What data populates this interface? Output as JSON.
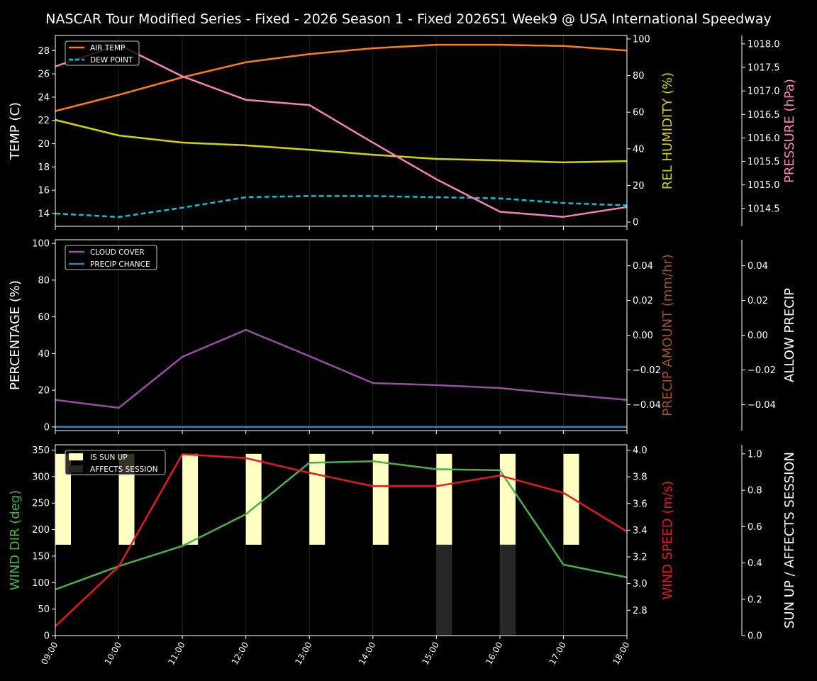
{
  "title": "NASCAR Tour Modified Series - Fixed - 2026 Season 1 - Fixed 2026S1 Week9 @ USA International Speedway",
  "chart_data": [
    {
      "type": "line",
      "x": [
        "09:00",
        "10:00",
        "11:00",
        "12:00",
        "13:00",
        "14:00",
        "15:00",
        "16:00",
        "17:00",
        "18:00"
      ],
      "grid": "vertical",
      "legend_position": "top-left",
      "axes": {
        "left": {
          "label": "TEMP (C)",
          "range": [
            12.9,
            29.3
          ],
          "ticks": [
            "14",
            "16",
            "18",
            "20",
            "22",
            "24",
            "26",
            "28"
          ],
          "color": "#ffffff"
        },
        "right": {
          "label": "REL HUMIDITY (%)",
          "range": [
            -2.3,
            101.9
          ],
          "ticks": [
            "0",
            "20",
            "40",
            "60",
            "80",
            "100"
          ],
          "color": "#d4d400"
        },
        "outer": {
          "label": "PRESSURE (hPa)",
          "range": [
            1014.12,
            1018.18
          ],
          "ticks": [
            "1014.5",
            "1015.0",
            "1015.5",
            "1016.0",
            "1016.5",
            "1017.0",
            "1017.5",
            "1018.0"
          ],
          "color": "#f781bf"
        }
      },
      "series": [
        {
          "name": "AIR TEMP",
          "axis": "left",
          "color": "#ff7f0e",
          "style": "solid",
          "values": [
            22.8,
            24.2,
            25.7,
            27.0,
            27.7,
            28.2,
            28.5,
            28.5,
            28.4,
            28.0
          ]
        },
        {
          "name": "DEW POINT",
          "axis": "left",
          "color": "#17becf",
          "style": "dashed",
          "values": [
            14.0,
            13.7,
            14.5,
            15.4,
            15.5,
            15.5,
            15.4,
            15.3,
            14.9,
            14.7
          ]
        },
        {
          "axis": "right",
          "color": "#d4d400",
          "style": "solid",
          "values": [
            55.8,
            47.3,
            43.4,
            41.9,
            39.5,
            36.8,
            34.5,
            33.7,
            32.6,
            33.3
          ]
        },
        {
          "axis": "outer",
          "color": "#f781bf",
          "style": "solid",
          "values": [
            1017.52,
            1017.98,
            1017.31,
            1016.81,
            1016.7,
            1015.9,
            1015.12,
            1014.43,
            1014.32,
            1014.53
          ]
        }
      ]
    },
    {
      "type": "line",
      "x": [
        "09:00",
        "10:00",
        "11:00",
        "12:00",
        "13:00",
        "14:00",
        "15:00",
        "16:00",
        "17:00",
        "18:00"
      ],
      "grid": "vertical",
      "legend_position": "top-left",
      "axes": {
        "left": {
          "label": "PERCENTAGE (%)",
          "range": [
            -2,
            102
          ],
          "ticks": [
            "0",
            "20",
            "40",
            "60",
            "80",
            "100"
          ],
          "color": "#ffffff"
        },
        "right": {
          "label": "PRECIP AMOUNT (mm/hr)",
          "range": [
            -0.055,
            0.055
          ],
          "ticks": [
            "−0.04",
            "−0.02",
            "0.00",
            "0.02",
            "0.04"
          ],
          "color": "#a0522d"
        },
        "outer": {
          "label": "ALLOW PRECIP",
          "range": [
            -0.055,
            0.055
          ],
          "ticks": [
            "−0.04",
            "−0.02",
            "0.00",
            "0.02",
            "0.04"
          ],
          "color": "#ffffff"
        }
      },
      "series": [
        {
          "name": "CLOUD COVER",
          "axis": "left",
          "color": "#984ea3",
          "style": "solid",
          "values": [
            14.7,
            10.4,
            38.2,
            52.9,
            38.6,
            23.9,
            22.8,
            21.2,
            17.8,
            14.7
          ]
        },
        {
          "name": "PRECIP CHANCE",
          "axis": "left",
          "color": "#377eb8",
          "style": "solid",
          "values": [
            0,
            0,
            0,
            0,
            0,
            0,
            0,
            0,
            0,
            0
          ]
        }
      ]
    },
    {
      "type": "line",
      "x": [
        "09:00",
        "10:00",
        "11:00",
        "12:00",
        "13:00",
        "14:00",
        "15:00",
        "16:00",
        "17:00",
        "18:00"
      ],
      "grid": "vertical",
      "legend_position": "top-left",
      "axes": {
        "left": {
          "label": "WIND DIR (deg)",
          "range": [
            0,
            360
          ],
          "ticks": [
            "0",
            "50",
            "100",
            "150",
            "200",
            "250",
            "300",
            "350"
          ],
          "color": "#4daf4a"
        },
        "right": {
          "label": "WIND SPEED (m/s)",
          "range": [
            2.61,
            4.04
          ],
          "ticks": [
            "2.8",
            "3.0",
            "3.2",
            "3.4",
            "3.6",
            "3.8",
            "4.0"
          ],
          "color": "#e41a1c"
        },
        "outer": {
          "label": "SUN UP / AFFECTS SESSION",
          "range": [
            0,
            1.05
          ],
          "ticks": [
            "0.0",
            "0.2",
            "0.4",
            "0.6",
            "0.8",
            "1.0"
          ],
          "color": "#ffffff"
        }
      },
      "series": [
        {
          "name": "IS SUN UP",
          "axis": "outer",
          "kind": "bar",
          "color": "#ffffc4",
          "base": 0.5,
          "values": [
            1,
            1,
            1,
            1,
            1,
            1,
            1,
            1,
            1,
            0
          ]
        },
        {
          "name": "AFFECTS SESSION",
          "axis": "outer",
          "kind": "bar",
          "color": "#262626",
          "base": 0,
          "values": [
            0,
            0,
            0,
            0,
            0,
            0,
            0.5,
            0.5,
            0,
            0
          ]
        },
        {
          "axis": "left",
          "color": "#4daf4a",
          "style": "solid",
          "values": [
            87,
            131,
            169,
            229,
            326,
            329,
            314,
            312,
            134,
            110
          ]
        },
        {
          "axis": "right",
          "color": "#e41a1c",
          "style": "solid",
          "values": [
            2.68,
            3.13,
            3.97,
            3.94,
            3.83,
            3.73,
            3.73,
            3.81,
            3.68,
            3.39
          ]
        }
      ]
    }
  ]
}
